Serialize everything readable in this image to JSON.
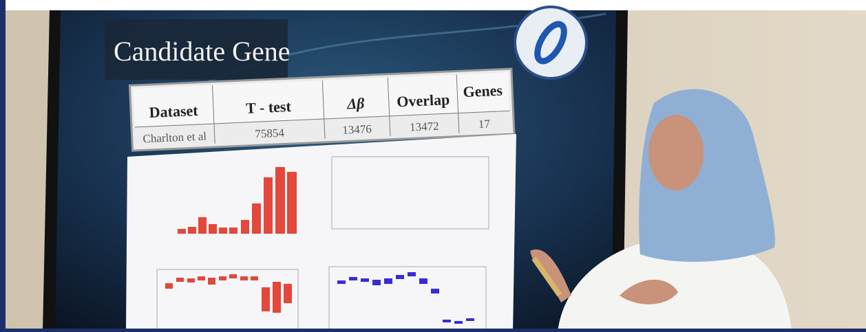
{
  "slide": {
    "title": "Candidate Gene",
    "table": {
      "header": [
        "Dataset",
        "T - test",
        "Δβ",
        "Overlap",
        "Genes"
      ],
      "rows": [
        [
          "Charlton et al",
          75854,
          13476,
          13472,
          17
        ]
      ]
    }
  }
}
